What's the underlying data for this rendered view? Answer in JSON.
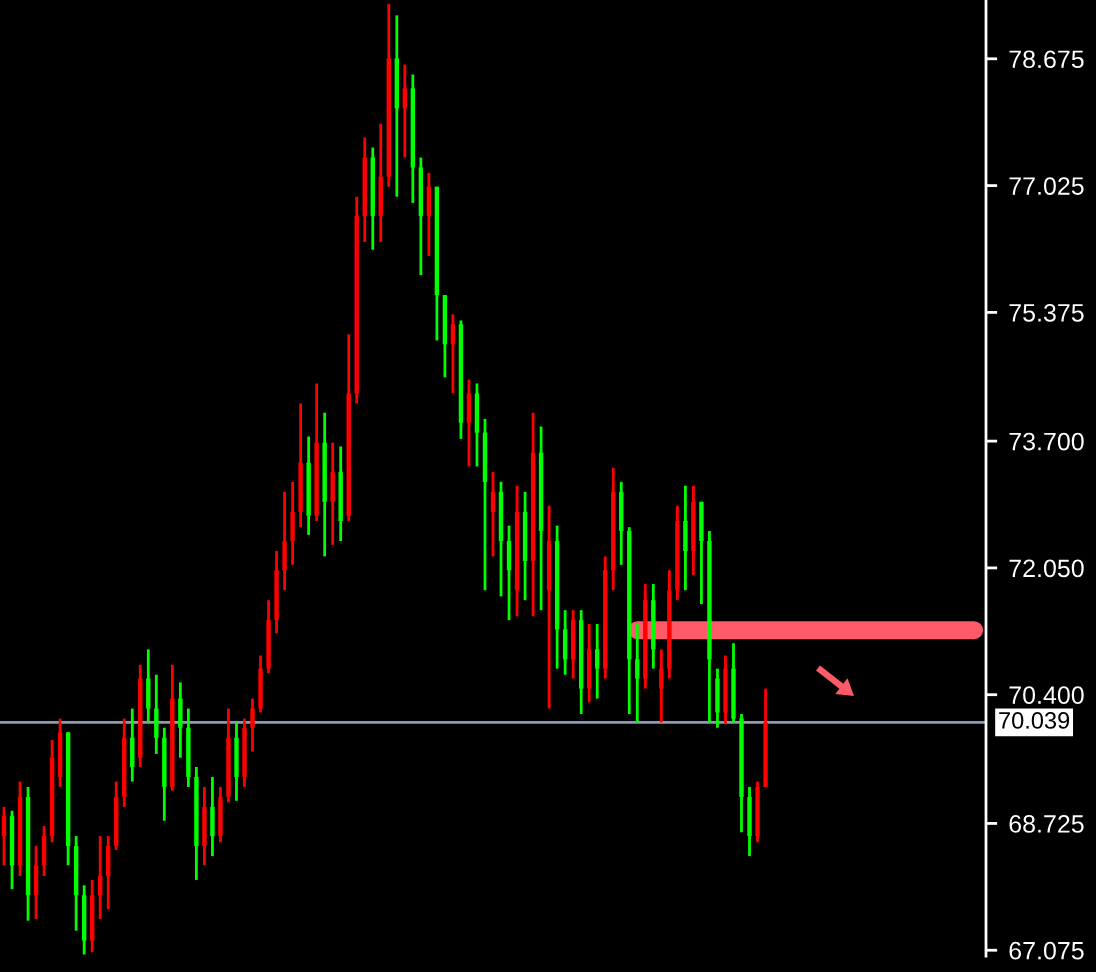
{
  "chart_data": {
    "type": "candlestick",
    "categories": [
      null,
      null,
      null,
      null,
      null,
      null,
      null,
      null,
      null,
      null,
      null,
      null,
      null,
      null,
      null,
      null,
      null,
      null,
      null,
      null,
      null,
      null,
      null,
      null,
      null,
      null,
      null,
      null,
      null,
      null,
      null,
      null,
      null,
      null,
      null,
      null,
      null,
      null,
      null,
      null,
      null,
      null,
      null,
      null,
      null,
      null,
      null,
      null,
      null,
      null,
      null,
      null,
      null,
      null,
      null,
      null,
      null,
      null,
      null,
      null,
      null,
      null,
      null,
      null,
      null,
      null,
      null,
      null,
      null,
      null,
      null,
      null,
      null,
      null,
      null,
      null,
      null,
      null,
      null,
      null,
      null,
      null,
      null,
      null,
      null,
      null,
      null,
      null,
      null,
      null,
      null,
      null,
      null,
      null,
      null,
      null,
      null,
      null,
      null,
      null,
      null,
      null,
      null,
      null,
      null,
      null,
      null,
      null,
      null,
      null,
      null,
      null,
      null,
      null,
      null,
      null,
      null,
      null,
      null,
      null,
      null,
      null,
      null
    ],
    "ohlc": [
      [
        68.56,
        68.94,
        68.18,
        68.82
      ],
      [
        68.82,
        68.89,
        67.87,
        68.18
      ],
      [
        68.18,
        69.27,
        68.04,
        69.07
      ],
      [
        69.07,
        69.2,
        67.46,
        67.79
      ],
      [
        67.79,
        68.43,
        67.48,
        68.18
      ],
      [
        68.18,
        68.69,
        68.04,
        68.56
      ],
      [
        68.56,
        69.81,
        68.48,
        69.58
      ],
      [
        69.33,
        70.09,
        69.2,
        69.91
      ],
      [
        69.91,
        69.91,
        68.18,
        68.43
      ],
      [
        68.43,
        68.56,
        67.33,
        67.79
      ],
      [
        67.79,
        67.92,
        67.02,
        67.2
      ],
      [
        67.2,
        67.99,
        67.05,
        67.79
      ],
      [
        67.79,
        68.56,
        67.48,
        68.04
      ],
      [
        68.04,
        68.56,
        67.61,
        68.43
      ],
      [
        68.43,
        69.27,
        68.38,
        69.07
      ],
      [
        69.07,
        70.09,
        68.94,
        69.84
      ],
      [
        69.84,
        70.22,
        69.27,
        69.46
      ],
      [
        69.58,
        70.79,
        69.46,
        70.61
      ],
      [
        70.61,
        70.99,
        70.04,
        70.22
      ],
      [
        70.22,
        70.66,
        69.63,
        69.84
      ],
      [
        69.84,
        69.97,
        68.76,
        69.2
      ],
      [
        69.2,
        70.79,
        69.15,
        70.35
      ],
      [
        70.35,
        70.56,
        69.58,
        69.97
      ],
      [
        69.97,
        70.22,
        69.2,
        69.33
      ],
      [
        69.33,
        69.46,
        67.99,
        68.43
      ],
      [
        68.43,
        69.2,
        68.18,
        68.94
      ],
      [
        68.94,
        69.33,
        68.3,
        68.56
      ],
      [
        68.56,
        69.2,
        68.48,
        69.07
      ],
      [
        69.07,
        70.22,
        69.0,
        69.84
      ],
      [
        69.84,
        70.04,
        69.02,
        69.33
      ],
      [
        69.33,
        70.09,
        69.2,
        69.97
      ],
      [
        69.97,
        70.35,
        69.66,
        70.22
      ],
      [
        70.22,
        70.91,
        70.17,
        70.74
      ],
      [
        70.74,
        71.63,
        70.68,
        71.37
      ],
      [
        71.37,
        72.27,
        71.2,
        72.02
      ],
      [
        72.02,
        73.04,
        71.76,
        72.4
      ],
      [
        72.4,
        73.17,
        72.09,
        72.78
      ],
      [
        72.78,
        74.19,
        72.58,
        73.42
      ],
      [
        73.42,
        73.76,
        72.48,
        72.73
      ],
      [
        72.73,
        74.45,
        72.66,
        73.68
      ],
      [
        73.68,
        74.07,
        72.2,
        72.91
      ],
      [
        72.91,
        73.68,
        72.35,
        73.3
      ],
      [
        73.3,
        73.63,
        72.4,
        72.66
      ],
      [
        72.73,
        75.09,
        72.66,
        74.32
      ],
      [
        74.32,
        76.88,
        74.19,
        76.63
      ],
      [
        76.63,
        77.65,
        76.29,
        77.39
      ],
      [
        77.39,
        77.52,
        76.19,
        76.63
      ],
      [
        76.63,
        77.83,
        76.29,
        77.14
      ],
      [
        77.14,
        79.39,
        77.01,
        78.68
      ],
      [
        78.68,
        79.24,
        76.88,
        78.03
      ],
      [
        78.03,
        78.6,
        77.39,
        78.29
      ],
      [
        78.29,
        78.47,
        76.8,
        77.26
      ],
      [
        77.26,
        77.39,
        75.86,
        76.63
      ],
      [
        76.63,
        77.19,
        76.11,
        77.01
      ],
      [
        77.01,
        77.01,
        75.01,
        75.6
      ],
      [
        75.6,
        75.6,
        74.53,
        74.96
      ],
      [
        74.96,
        75.35,
        74.32,
        75.22
      ],
      [
        75.22,
        75.27,
        73.73,
        73.94
      ],
      [
        73.94,
        74.5,
        73.37,
        74.32
      ],
      [
        74.32,
        74.45,
        73.37,
        73.81
      ],
      [
        73.81,
        73.99,
        71.76,
        73.17
      ],
      [
        72.78,
        73.3,
        72.2,
        73.04
      ],
      [
        73.04,
        73.17,
        71.68,
        72.4
      ],
      [
        72.4,
        72.6,
        71.37,
        72.02
      ],
      [
        71.76,
        73.12,
        71.42,
        72.78
      ],
      [
        72.78,
        73.04,
        71.63,
        72.14
      ],
      [
        72.14,
        74.07,
        71.42,
        73.55
      ],
      [
        73.55,
        73.89,
        71.5,
        72.53
      ],
      [
        71.76,
        72.86,
        70.22,
        72.4
      ],
      [
        72.4,
        72.6,
        70.74,
        71.25
      ],
      [
        71.25,
        71.5,
        70.66,
        70.86
      ],
      [
        70.86,
        71.5,
        70.61,
        71.37
      ],
      [
        71.37,
        71.5,
        70.15,
        70.48
      ],
      [
        70.48,
        71.32,
        70.3,
        70.99
      ],
      [
        70.99,
        71.32,
        70.35,
        70.74
      ],
      [
        70.74,
        72.2,
        70.61,
        72.02
      ],
      [
        72.02,
        73.35,
        71.76,
        73.04
      ],
      [
        73.04,
        73.17,
        72.09,
        72.53
      ],
      [
        72.53,
        72.58,
        70.15,
        70.86
      ],
      [
        70.86,
        71.32,
        70.04,
        70.61
      ],
      [
        70.61,
        71.84,
        70.48,
        71.63
      ],
      [
        71.63,
        71.84,
        70.74,
        70.99
      ],
      [
        70.48,
        70.99,
        70.04,
        70.74
      ],
      [
        70.74,
        72.02,
        70.61,
        71.76
      ],
      [
        71.76,
        72.86,
        71.63,
        72.66
      ],
      [
        72.66,
        73.12,
        71.76,
        72.27
      ],
      [
        72.27,
        73.12,
        71.96,
        72.91
      ],
      [
        72.91,
        72.91,
        71.58,
        72.4
      ],
      [
        72.4,
        72.53,
        70.04,
        70.86
      ],
      [
        70.61,
        70.74,
        69.97,
        70.17
      ],
      [
        70.17,
        70.91,
        70.02,
        70.74
      ],
      [
        70.74,
        71.07,
        70.04,
        70.09
      ],
      [
        70.09,
        70.15,
        68.61,
        69.07
      ],
      [
        69.07,
        69.2,
        68.3,
        68.56
      ],
      [
        68.56,
        69.27,
        68.48,
        69.2
      ],
      [
        69.2,
        70.48,
        69.2,
        70.039
      ],
      null,
      null,
      null,
      null,
      null,
      null,
      null,
      null,
      null,
      null,
      null,
      null,
      null,
      null,
      null,
      null,
      null,
      null,
      null,
      null,
      null,
      null,
      null,
      null,
      null,
      null,
      null
    ],
    "colors": [
      "#ff0000",
      "#00ff00",
      "#ff0000",
      "#00ff00",
      "#ff0000",
      "#ff0000",
      "#ff0000",
      "#ff0000",
      "#00ff00",
      "#00ff00",
      "#00ff00",
      "#ff0000",
      "#ff0000",
      "#ff0000",
      "#ff0000",
      "#ff0000",
      "#00ff00",
      "#ff0000",
      "#00ff00",
      "#00ff00",
      "#00ff00",
      "#ff0000",
      "#00ff00",
      "#00ff00",
      "#00ff00",
      "#ff0000",
      "#00ff00",
      "#ff0000",
      "#ff0000",
      "#00ff00",
      "#ff0000",
      "#ff0000",
      "#ff0000",
      "#ff0000",
      "#ff0000",
      "#ff0000",
      "#ff0000",
      "#ff0000",
      "#00ff00",
      "#ff0000",
      "#00ff00",
      "#ff0000",
      "#00ff00",
      "#ff0000",
      "#ff0000",
      "#ff0000",
      "#00ff00",
      "#ff0000",
      "#ff0000",
      "#00ff00",
      "#ff0000",
      "#00ff00",
      "#00ff00",
      "#ff0000",
      "#00ff00",
      "#00ff00",
      "#ff0000",
      "#00ff00",
      "#ff0000",
      "#00ff00",
      "#00ff00",
      "#ff0000",
      "#00ff00",
      "#00ff00",
      "#ff0000",
      "#00ff00",
      "#ff0000",
      "#00ff00",
      "#ff0000",
      "#00ff00",
      "#00ff00",
      "#ff0000",
      "#00ff00",
      "#ff0000",
      "#00ff00",
      "#ff0000",
      "#ff0000",
      "#00ff00",
      "#00ff00",
      "#00ff00",
      "#ff0000",
      "#00ff00",
      "#ff0000",
      "#ff0000",
      "#ff0000",
      "#00ff00",
      "#ff0000",
      "#00ff00",
      "#00ff00",
      "#00ff00",
      "#ff0000",
      "#00ff00",
      "#00ff00",
      "#00ff00",
      "#ff0000",
      "#ff0000",
      null,
      null,
      null,
      null,
      null,
      null,
      null,
      null,
      null,
      null,
      null,
      null,
      null,
      null,
      null,
      null,
      null,
      null,
      null,
      null,
      null,
      null,
      null,
      null,
      null,
      null,
      null
    ],
    "series": [
      {
        "type": "line",
        "color": "#ff5a6a",
        "values": [
          null,
          null,
          null,
          null,
          null,
          null,
          null,
          null,
          null,
          null,
          null,
          null,
          null,
          null,
          null,
          null,
          null,
          null,
          null,
          null,
          null,
          null,
          null,
          null,
          null,
          null,
          null,
          null,
          null,
          null,
          null,
          null,
          null,
          null,
          null,
          null,
          null,
          null,
          null,
          null,
          null,
          null,
          null,
          null,
          null,
          null,
          null,
          null,
          null,
          null,
          null,
          null,
          null,
          null,
          null,
          null,
          null,
          null,
          null,
          null,
          null,
          null,
          null,
          null,
          null,
          null,
          null,
          null,
          null,
          null,
          null,
          null,
          null,
          null,
          null,
          null,
          null,
          null,
          null,
          71.24,
          71.24,
          71.24,
          71.24,
          71.24,
          71.24,
          71.24,
          71.24,
          71.24,
          71.24,
          71.24,
          71.24,
          71.24,
          71.24,
          71.24,
          71.24,
          71.24,
          71.24,
          71.24,
          71.24,
          71.24,
          71.24,
          71.24,
          71.24,
          71.24,
          71.24,
          71.24,
          71.24,
          71.24,
          71.24,
          71.24,
          71.24,
          71.24,
          71.24,
          71.24,
          71.24,
          71.24,
          71.24,
          71.24,
          71.24,
          71.24,
          71.24,
          71.24,
          null
        ]
      }
    ],
    "ylim": [
      67.0,
      79.44
    ],
    "yticks": [
      67.075,
      68.725,
      {
        "value": 70.4,
        "label": "70.400"
      },
      {
        "value": 72.05,
        "label": "72.050"
      },
      {
        "value": 73.7,
        "label": "73.700"
      },
      75.375,
      77.025,
      78.675
    ],
    "ref_lines": [
      {
        "axis": "y",
        "value": 70.039,
        "label": "70.039",
        "color": "#8c9bb4"
      }
    ],
    "tick_labels": "y"
  }
}
